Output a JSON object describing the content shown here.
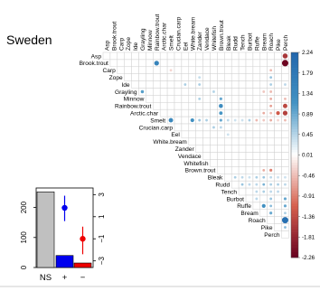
{
  "title": "Sweden",
  "chart_data": [
    {
      "type": "heatmap",
      "subtype": "upper-triangular correlation matrix",
      "species": [
        "Asp",
        "Brook.trout",
        "Carp",
        "Zope",
        "Ide",
        "Grayling",
        "Minnow",
        "Rainbow.trout",
        "Arctic.char",
        "Smelt",
        "Crucian.carp",
        "Eel",
        "White.bream",
        "Zander",
        "Vendace",
        "Whitefish",
        "Brown.trout",
        "Bleak",
        "Rudd",
        "Tench",
        "Burbot",
        "Ruffe",
        "Bream",
        "Roach",
        "Pike",
        "Perch"
      ],
      "cells": [
        [
          "Asp",
          "Perch",
          -1.6
        ],
        [
          "Brook.trout",
          "Rainbow.trout",
          1.5
        ],
        [
          "Brook.trout",
          "Perch",
          -2.2
        ],
        [
          "Carp",
          "Smelt",
          -0.3
        ],
        [
          "Carp",
          "Roach",
          -0.5
        ],
        [
          "Zope",
          "Zander",
          0.35
        ],
        [
          "Zope",
          "Roach",
          0.6
        ],
        [
          "Ide",
          "Eel",
          0.5
        ],
        [
          "Ide",
          "Zander",
          0.5
        ],
        [
          "Ide",
          "Roach",
          0.5
        ],
        [
          "Ide",
          "Perch",
          0.4
        ],
        [
          "Grayling",
          "Grayling",
          1.0
        ],
        [
          "Grayling",
          "Whitefish",
          0.45
        ],
        [
          "Grayling",
          "Bream",
          -0.4
        ],
        [
          "Grayling",
          "Roach",
          -0.5
        ],
        [
          "Minnow",
          "Zander",
          0.5
        ],
        [
          "Minnow",
          "Brown.trout",
          0.9
        ],
        [
          "Minnow",
          "Roach",
          -0.6
        ],
        [
          "Minnow",
          "Perch",
          -0.5
        ],
        [
          "Rainbow.trout",
          "Brown.trout",
          1.3
        ],
        [
          "Rainbow.trout",
          "Roach",
          -0.7
        ],
        [
          "Rainbow.trout",
          "Perch",
          -1.4
        ],
        [
          "Arctic.char",
          "Brown.trout",
          1.1
        ],
        [
          "Arctic.char",
          "Bream",
          -0.6
        ],
        [
          "Arctic.char",
          "Roach",
          -0.5
        ],
        [
          "Arctic.char",
          "Pike",
          -1.2
        ],
        [
          "Arctic.char",
          "Perch",
          -1.5
        ],
        [
          "Smelt",
          "Smelt",
          1.4
        ],
        [
          "Smelt",
          "White.bream",
          1.2
        ],
        [
          "Smelt",
          "Zander",
          0.6
        ],
        [
          "Smelt",
          "Vendace",
          0.5
        ],
        [
          "Smelt",
          "Brown.trout",
          0.9
        ],
        [
          "Smelt",
          "Bleak",
          0.4
        ],
        [
          "Smelt",
          "Rudd",
          0.3
        ],
        [
          "Smelt",
          "Tench",
          0.3
        ],
        [
          "Smelt",
          "Burbot",
          0.5
        ],
        [
          "Smelt",
          "Ruffe",
          -0.5
        ],
        [
          "Smelt",
          "Bream",
          -0.4
        ],
        [
          "Smelt",
          "Roach",
          -0.6
        ],
        [
          "Smelt",
          "Pike",
          -0.3
        ],
        [
          "Smelt",
          "Perch",
          -0.5
        ],
        [
          "Crucian.carp",
          "Whitefish",
          0.5
        ],
        [
          "Crucian.carp",
          "Brown.trout",
          0.4
        ],
        [
          "Eel",
          "Bleak",
          0.3
        ],
        [
          "Brown.trout",
          "Bream",
          -0.6
        ],
        [
          "Brown.trout",
          "Roach",
          -0.9
        ],
        [
          "Bleak",
          "Rudd",
          0.5
        ],
        [
          "Bleak",
          "Tench",
          0.4
        ],
        [
          "Bleak",
          "Burbot",
          0.3
        ],
        [
          "Bleak",
          "Ruffe",
          0.5
        ],
        [
          "Bleak",
          "Bream",
          0.6
        ],
        [
          "Bleak",
          "Roach",
          0.4
        ],
        [
          "Bleak",
          "Pike",
          0.3
        ],
        [
          "Bleak",
          "Perch",
          0.3
        ],
        [
          "Rudd",
          "Tench",
          0.6
        ],
        [
          "Rudd",
          "Burbot",
          0.4
        ],
        [
          "Rudd",
          "Ruffe",
          0.4
        ],
        [
          "Rudd",
          "Bream",
          0.8
        ],
        [
          "Rudd",
          "Roach",
          0.5
        ],
        [
          "Rudd",
          "Pike",
          0.5
        ],
        [
          "Rudd",
          "Perch",
          0.4
        ],
        [
          "Tench",
          "Ruffe",
          0.4
        ],
        [
          "Tench",
          "Bream",
          0.5
        ],
        [
          "Tench",
          "Roach",
          0.4
        ],
        [
          "Tench",
          "Pike",
          0.4
        ],
        [
          "Burbot",
          "Ruffe",
          0.4
        ],
        [
          "Burbot",
          "Roach",
          0.6
        ],
        [
          "Burbot",
          "Perch",
          0.9
        ],
        [
          "Ruffe",
          "Bream",
          1.2
        ],
        [
          "Ruffe",
          "Roach",
          0.7
        ],
        [
          "Ruffe",
          "Perch",
          0.9
        ],
        [
          "Bream",
          "Roach",
          0.9
        ],
        [
          "Bream",
          "Perch",
          0.5
        ],
        [
          "Roach",
          "Perch",
          2.0
        ],
        [
          "Pike",
          "Perch",
          0.7
        ]
      ],
      "colorbar_ticks": [
        "2.24",
        "1.79",
        "1.34",
        "0.89",
        "0.45",
        "0.01",
        "-0.46",
        "-0.91",
        "-1.36",
        "-1.81",
        "-2.26"
      ],
      "colorbar_range": [
        -2.26,
        2.24
      ],
      "colors": {
        "positive": "#2166ac",
        "negative": "#67001f",
        "neutral": "#ffffff"
      },
      "grid": true,
      "legend": "right"
    },
    {
      "type": "bar",
      "categories": [
        "NS",
        "+",
        "−"
      ],
      "values": [
        252,
        40,
        15
      ],
      "bar_colors": [
        "#c0c0c0",
        "#0000ee",
        "#ee0000"
      ],
      "ylim": [
        0,
        265
      ],
      "y_ticks": [
        "200",
        "100",
        "0"
      ]
    },
    {
      "type": "scatter",
      "subtype": "point estimate with error bars",
      "categories": [
        "+",
        "−"
      ],
      "values": [
        1.8,
        -1.0
      ],
      "lower": [
        0.6,
        -2.4
      ],
      "upper": [
        2.9,
        0.1
      ],
      "point_colors": [
        "#0000ee",
        "#ee0000"
      ],
      "ylim": [
        -3.6,
        3.6
      ],
      "y_ticks": [
        "3",
        "1",
        "−1",
        "−3"
      ]
    }
  ]
}
